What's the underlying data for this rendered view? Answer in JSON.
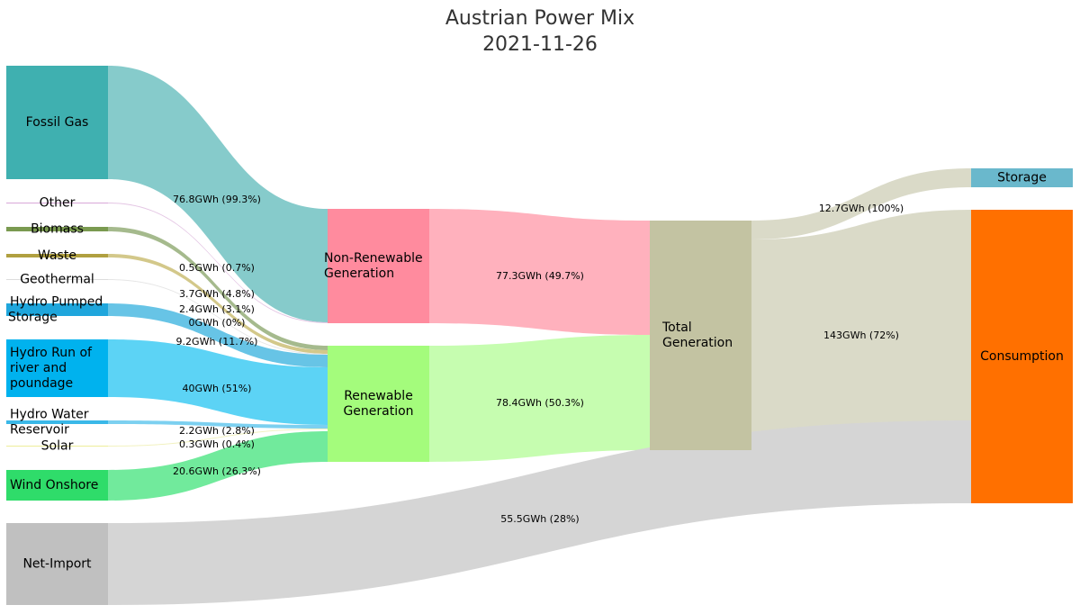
{
  "chart_data": {
    "type": "sankey",
    "title": "Austrian Power Mix",
    "subtitle": "2021-11-26",
    "nodes": [
      {
        "id": "fossil_gas",
        "label": [
          "Fossil Gas"
        ],
        "color": "#3fb0b0"
      },
      {
        "id": "other",
        "label": [
          "Other"
        ],
        "color": "#d8a8d8"
      },
      {
        "id": "biomass",
        "label": [
          "Biomass"
        ],
        "color": "#7a9a50"
      },
      {
        "id": "waste",
        "label": [
          "Waste"
        ],
        "color": "#b0a040"
      },
      {
        "id": "geothermal",
        "label": [
          "Geothermal"
        ],
        "color": "#dddddd"
      },
      {
        "id": "hydro_pumped",
        "label": [
          "Hydro Pumped",
          "Storage"
        ],
        "color": "#1fa6dc"
      },
      {
        "id": "hydro_run",
        "label": [
          "Hydro Run of",
          "river and",
          "poundage"
        ],
        "color": "#00b2ee"
      },
      {
        "id": "hydro_reservoir",
        "label": [
          "Hydro Water",
          "Reservoir"
        ],
        "color": "#3ab8e8"
      },
      {
        "id": "solar",
        "label": [
          "Solar"
        ],
        "color": "#eeee99"
      },
      {
        "id": "wind",
        "label": [
          "Wind Onshore"
        ],
        "color": "#2fdc6a"
      },
      {
        "id": "net_import",
        "label": [
          "Net-Import"
        ],
        "color": "#c0c0c0"
      },
      {
        "id": "non_renewable",
        "label": [
          "Non-Renewable",
          "Generation"
        ],
        "color": "#ff8b9e"
      },
      {
        "id": "renewable",
        "label": [
          "Renewable",
          "Generation"
        ],
        "color": "#a4fc7c"
      },
      {
        "id": "total",
        "label": [
          "Total",
          "Generation"
        ],
        "color": "#c3c3a2"
      },
      {
        "id": "storage",
        "label": [
          "Storage"
        ],
        "color": "#6ab8cc"
      },
      {
        "id": "consumption",
        "label": [
          "Consumption"
        ],
        "color": "#ff7000"
      }
    ],
    "links": [
      {
        "source": "fossil_gas",
        "target": "non_renewable",
        "value": 76.8,
        "label": "76.8GWh (99.3%)"
      },
      {
        "source": "other",
        "target": "non_renewable",
        "value": 0.5,
        "label": "0.5GWh (0.7%)"
      },
      {
        "source": "biomass",
        "target": "renewable",
        "value": 3.7,
        "label": "3.7GWh (4.8%)"
      },
      {
        "source": "waste",
        "target": "renewable",
        "value": 2.4,
        "label": "2.4GWh (3.1%)"
      },
      {
        "source": "geothermal",
        "target": "renewable",
        "value": 0,
        "label": "0GWh (0%)"
      },
      {
        "source": "hydro_pumped",
        "target": "renewable",
        "value": 9.2,
        "label": "9.2GWh (11.7%)"
      },
      {
        "source": "hydro_run",
        "target": "renewable",
        "value": 40,
        "label": "40GWh (51%)"
      },
      {
        "source": "hydro_reservoir",
        "target": "renewable",
        "value": 2.2,
        "label": "2.2GWh (2.8%)"
      },
      {
        "source": "solar",
        "target": "renewable",
        "value": 0.3,
        "label": "0.3GWh (0.4%)"
      },
      {
        "source": "wind",
        "target": "renewable",
        "value": 20.6,
        "label": "20.6GWh (26.3%)"
      },
      {
        "source": "non_renewable",
        "target": "total",
        "value": 77.3,
        "label": "77.3GWh (49.7%)"
      },
      {
        "source": "renewable",
        "target": "total",
        "value": 78.4,
        "label": "78.4GWh (50.3%)"
      },
      {
        "source": "total",
        "target": "storage",
        "value": 12.7,
        "label": "12.7GWh (100%)"
      },
      {
        "source": "total",
        "target": "consumption",
        "value": 143,
        "label": "143GWh (72%)"
      },
      {
        "source": "net_import",
        "target": "consumption",
        "value": 55.5,
        "label": "55.5GWh (28%)"
      }
    ]
  }
}
